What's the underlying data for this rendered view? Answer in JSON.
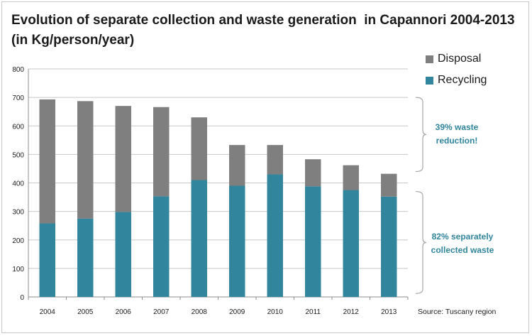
{
  "chart_data": {
    "type": "bar",
    "stacked": true,
    "title": "Evolution of separate collection and waste generation  in Capannori 2004-2013",
    "subtitle": "(in Kg/person/year)",
    "categories": [
      "2004",
      "2005",
      "2006",
      "2007",
      "2008",
      "2009",
      "2010",
      "2011",
      "2012",
      "2013"
    ],
    "series": [
      {
        "name": "Recycling",
        "color": "#31859c",
        "values": [
          258,
          275,
          298,
          353,
          410,
          390,
          430,
          388,
          375,
          352
        ]
      },
      {
        "name": "Disposal",
        "color": "#7f7f7f",
        "values": [
          435,
          412,
          372,
          313,
          220,
          143,
          103,
          95,
          87,
          80
        ]
      }
    ],
    "ylim": [
      0,
      800
    ],
    "yticks": [
      "0",
      "100",
      "200",
      "300",
      "400",
      "500",
      "600",
      "700",
      "800"
    ],
    "grid": true,
    "legend_position": "top-right",
    "annotations": [
      {
        "text_line1": "39% waste",
        "text_line2": "reduction!"
      },
      {
        "text_line1": "82% separately",
        "text_line2": "collected waste"
      }
    ],
    "annotation_color": "#31859c",
    "source": "Source:  Tuscany region"
  }
}
